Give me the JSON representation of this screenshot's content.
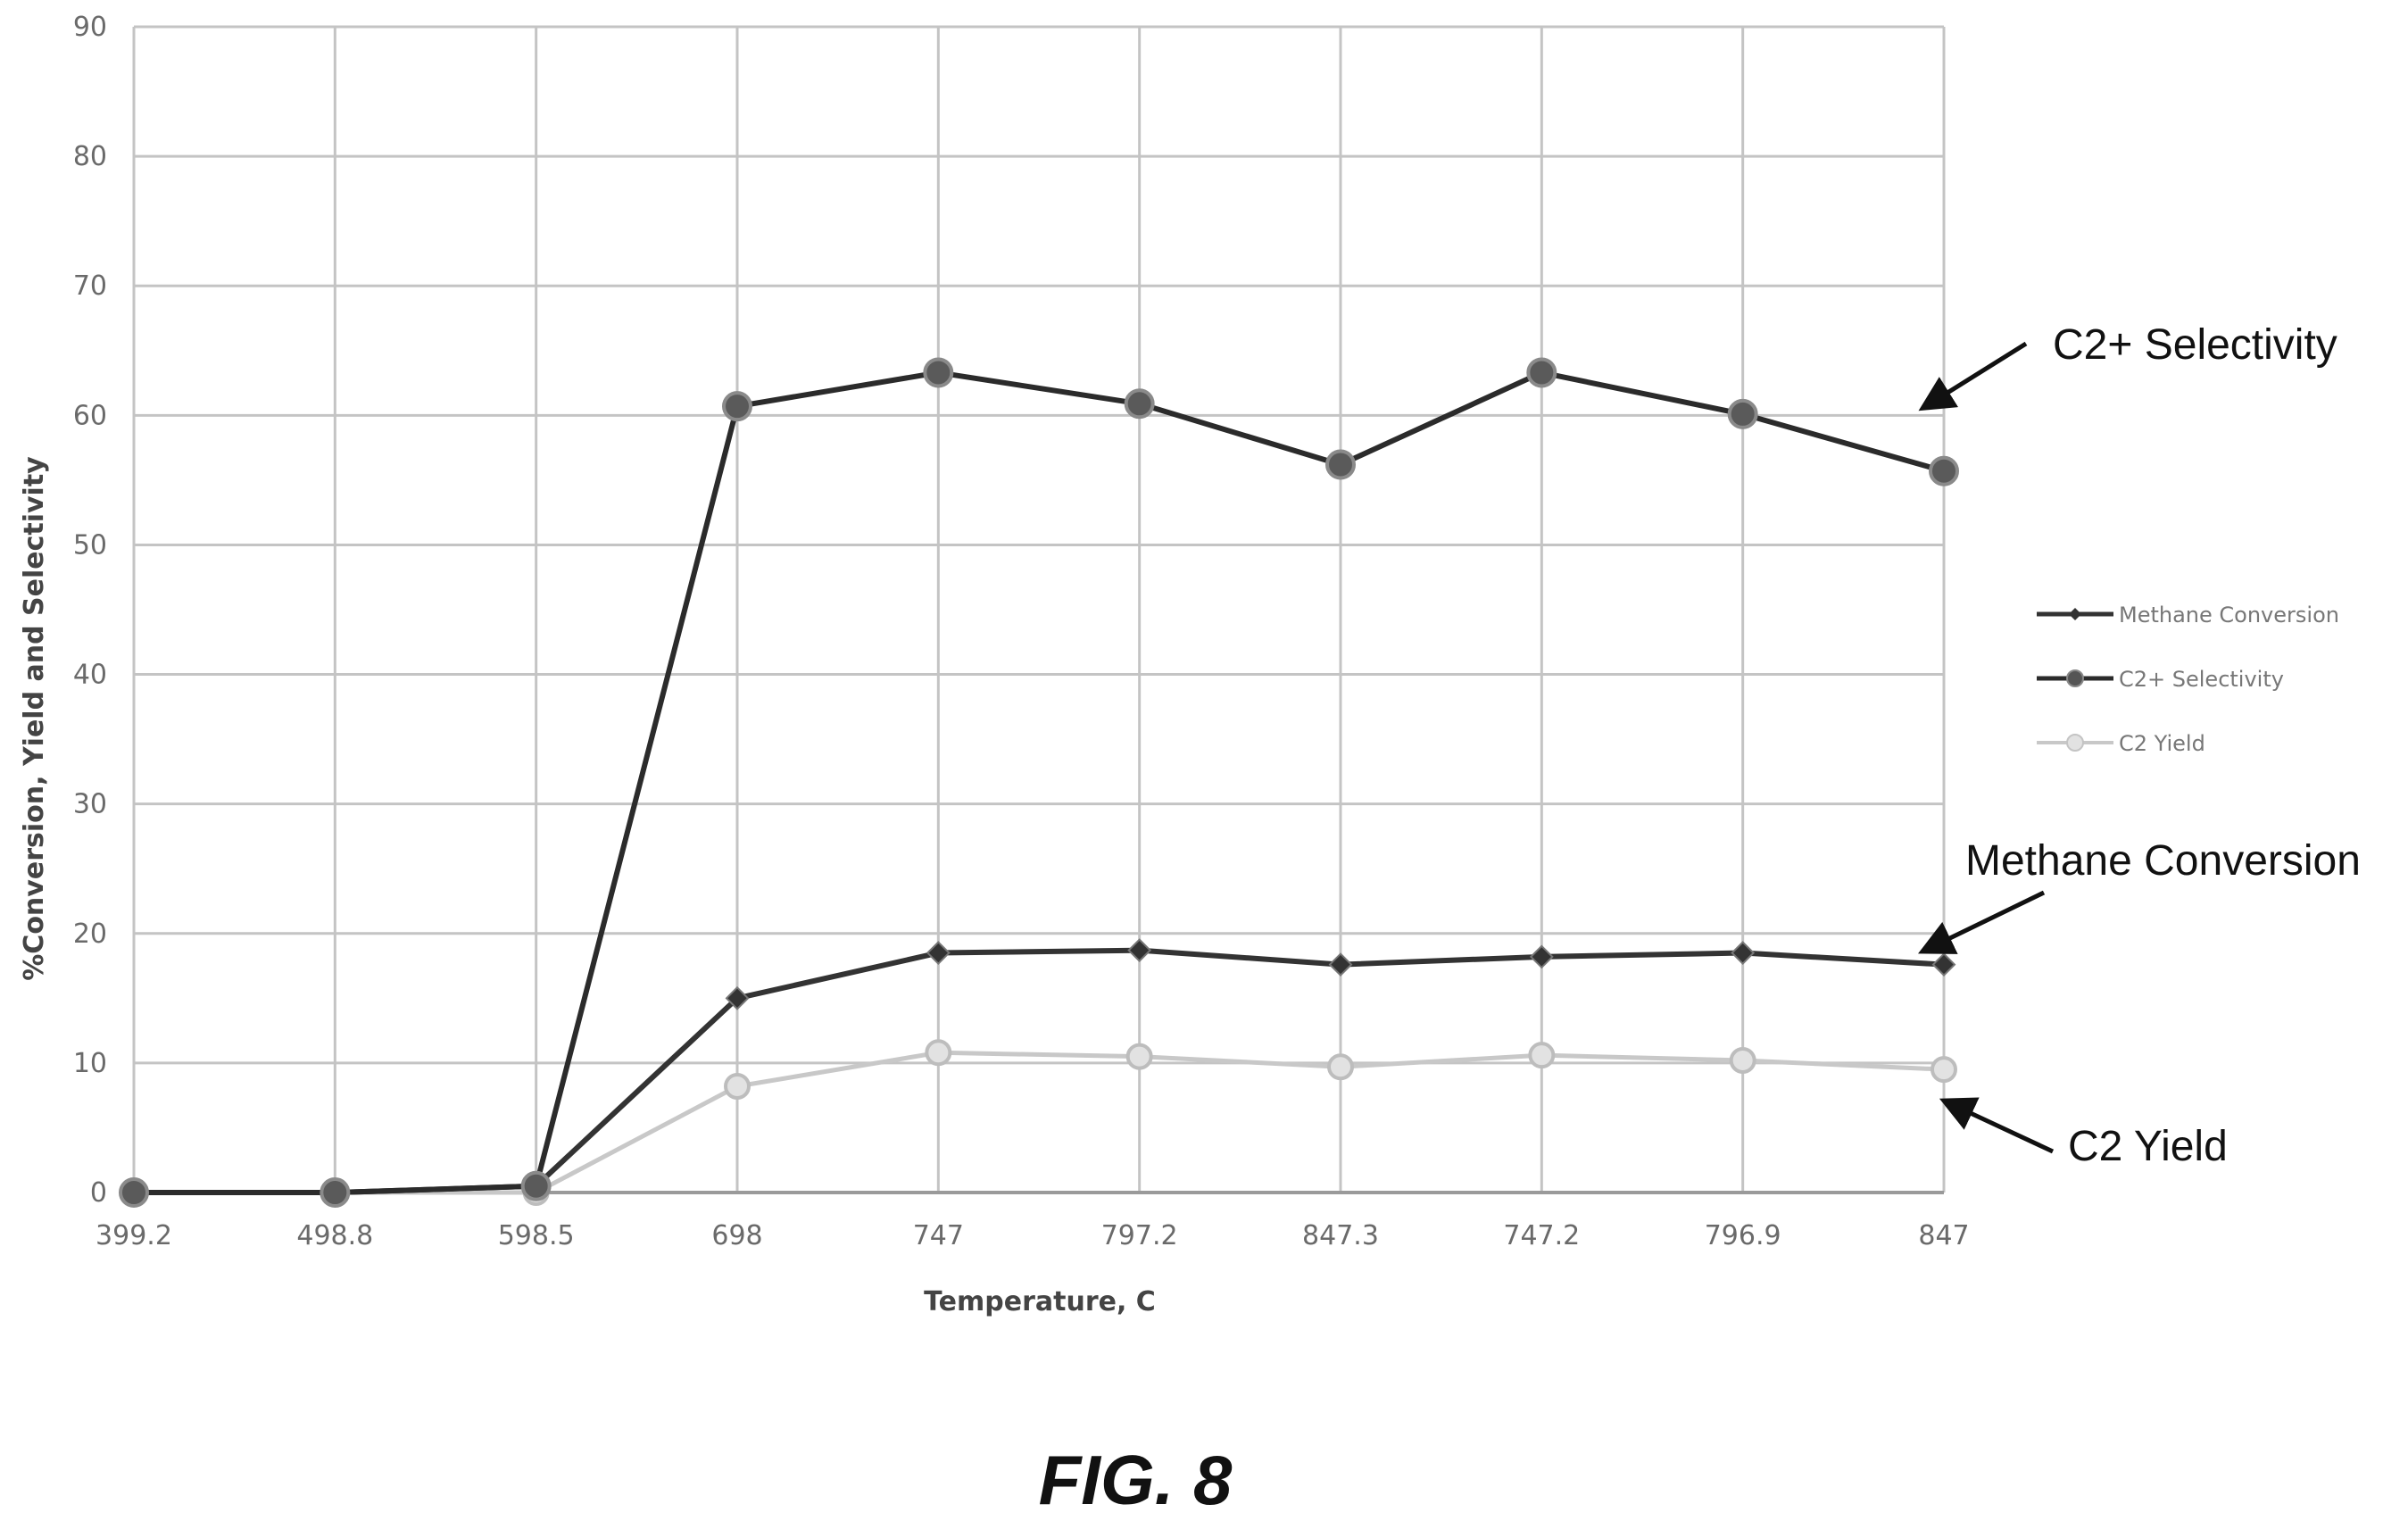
{
  "chart_data": {
    "type": "line",
    "categories": [
      "399.2",
      "498.8",
      "598.5",
      "698",
      "747",
      "797.2",
      "847.3",
      "747.2",
      "796.9",
      "847"
    ],
    "series": [
      {
        "name": "Methane Conversion",
        "values": [
          0,
          0,
          0.5,
          15,
          18.5,
          18.7,
          17.6,
          18.2,
          18.5,
          17.6
        ],
        "color": "#333333",
        "marker": "diamond"
      },
      {
        "name": "C2+ Selectivity",
        "values": [
          0,
          0,
          0.5,
          60.7,
          63.3,
          60.9,
          56.2,
          63.3,
          60.1,
          55.7
        ],
        "color": "#2b2b2b",
        "marker": "circle"
      },
      {
        "name": "C2 Yield",
        "values": [
          0,
          0,
          0,
          8.2,
          10.8,
          10.5,
          9.7,
          10.6,
          10.2,
          9.5
        ],
        "color": "#c8c8c8",
        "marker": "circle"
      }
    ],
    "xlabel": "Temperature, C",
    "ylabel": "%Conversion, Yield and Selectivity",
    "ylim": [
      0,
      90
    ],
    "yticks": [
      "0",
      "10",
      "20",
      "30",
      "40",
      "50",
      "60",
      "70",
      "80",
      "90"
    ],
    "grid": true,
    "legend_position": "right",
    "annotations": [
      {
        "text": "C2+ Selectivity"
      },
      {
        "text": "Methane Conversion"
      },
      {
        "text": "C2 Yield"
      }
    ]
  },
  "figure_label": "FIG. 8"
}
